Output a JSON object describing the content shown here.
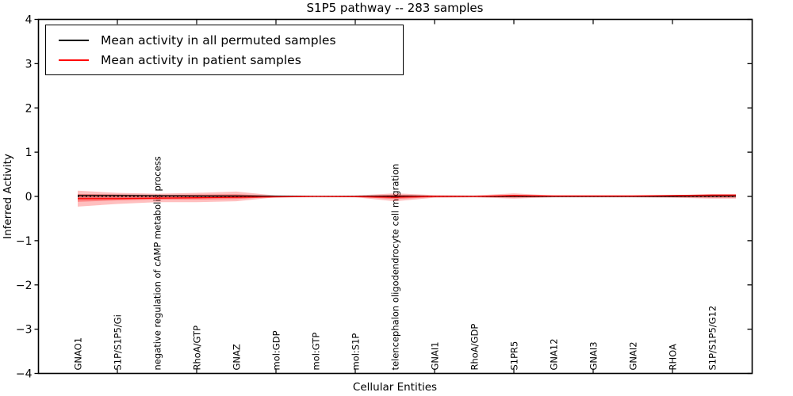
{
  "figure": {
    "title": "S1P5 pathway -- 283 samples",
    "xlabel": "Cellular Entities",
    "ylabel": "Inferred Activity"
  },
  "legend": {
    "entries": [
      {
        "label": "Mean activity in all permuted samples",
        "color": "#000000"
      },
      {
        "label": "Mean activity in patient samples",
        "color": "#ff0000"
      }
    ]
  },
  "chart_data": {
    "type": "line",
    "title": "S1P5 pathway -- 283 samples",
    "xlabel": "Cellular Entities",
    "ylabel": "Inferred Activity",
    "ylim": [
      -4,
      4
    ],
    "ytick_values": [
      4,
      3,
      2,
      1,
      0,
      -1,
      -2,
      -3,
      -4
    ],
    "ytick_labels": [
      "4",
      "3",
      "2",
      "1",
      "0",
      "−1",
      "−2",
      "−3",
      "−4"
    ],
    "grid": false,
    "legend_position": "upper left",
    "categories": [
      "GNAO1",
      "S1P/S1P5/Gi",
      "negative regulation of cAMP metabolic process",
      "RhoA/GTP",
      "GNAZ",
      "mol:GDP",
      "mol:GTP",
      "mol:S1P",
      "telencephalon oligodendrocyte cell migration",
      "GNAI1",
      "RhoA/GDP",
      "S1PR5",
      "GNA12",
      "GNAI3",
      "GNAI2",
      "RHOA",
      "S1P/S1P5/G12"
    ],
    "series": [
      {
        "name": "Mean activity in all permuted samples",
        "color": "#000000",
        "style": "solid",
        "values": [
          0.02,
          0.02,
          0.015,
          0.01,
          0.01,
          0.005,
          0,
          0,
          0.005,
          0,
          0,
          0,
          0,
          0,
          0,
          0,
          0.01
        ]
      },
      {
        "name": "Mean activity in patient samples",
        "color": "#ff0000",
        "style": "solid",
        "values": [
          -0.05,
          -0.05,
          -0.04,
          -0.03,
          -0.02,
          -0.01,
          0,
          -0.005,
          -0.02,
          0,
          0,
          0.02,
          0.01,
          0.01,
          0.01,
          0.02,
          0.03
        ]
      }
    ],
    "zero_line": {
      "value": 0,
      "color": "#000000",
      "style": "dotted"
    },
    "bands": [
      {
        "name": "permuted-activity-range",
        "color": "#000000",
        "opacity": 0.13,
        "upper": [
          0.055,
          0.05,
          0.04,
          0.035,
          0.03,
          0.025,
          0.022,
          0.022,
          0.028,
          0.022,
          0.022,
          0.022,
          0.022,
          0.022,
          0.022,
          0.022,
          0.03
        ],
        "lower": [
          -0.055,
          -0.05,
          -0.04,
          -0.035,
          -0.03,
          -0.025,
          -0.022,
          -0.022,
          -0.028,
          -0.022,
          -0.022,
          -0.022,
          -0.022,
          -0.022,
          -0.022,
          -0.022,
          -0.03
        ]
      },
      {
        "name": "patient-activity-range-outer",
        "color": "#ff0000",
        "opacity": 0.25,
        "upper": [
          0.13,
          0.08,
          0.06,
          0.08,
          0.11,
          0.02,
          0.01,
          0.02,
          0.07,
          0.03,
          0.02,
          0.07,
          0.02,
          0.02,
          0.02,
          0.03,
          0.05
        ],
        "lower": [
          -0.23,
          -0.17,
          -0.13,
          -0.13,
          -0.11,
          -0.02,
          -0.01,
          -0.02,
          -0.11,
          -0.03,
          -0.02,
          -0.05,
          -0.02,
          -0.02,
          -0.02,
          -0.03,
          -0.05
        ]
      },
      {
        "name": "patient-activity-range-inner",
        "color": "#ff0000",
        "opacity": 0.32,
        "upper": [
          0.05,
          0.04,
          0.03,
          0.04,
          0.05,
          0.01,
          0.005,
          0.01,
          0.04,
          0.015,
          0.01,
          0.035,
          0.01,
          0.01,
          0.01,
          0.015,
          0.025
        ],
        "lower": [
          -0.12,
          -0.09,
          -0.07,
          -0.07,
          -0.06,
          -0.01,
          -0.005,
          -0.01,
          -0.06,
          -0.015,
          -0.01,
          -0.025,
          -0.01,
          -0.01,
          -0.01,
          -0.015,
          -0.025
        ]
      }
    ]
  }
}
